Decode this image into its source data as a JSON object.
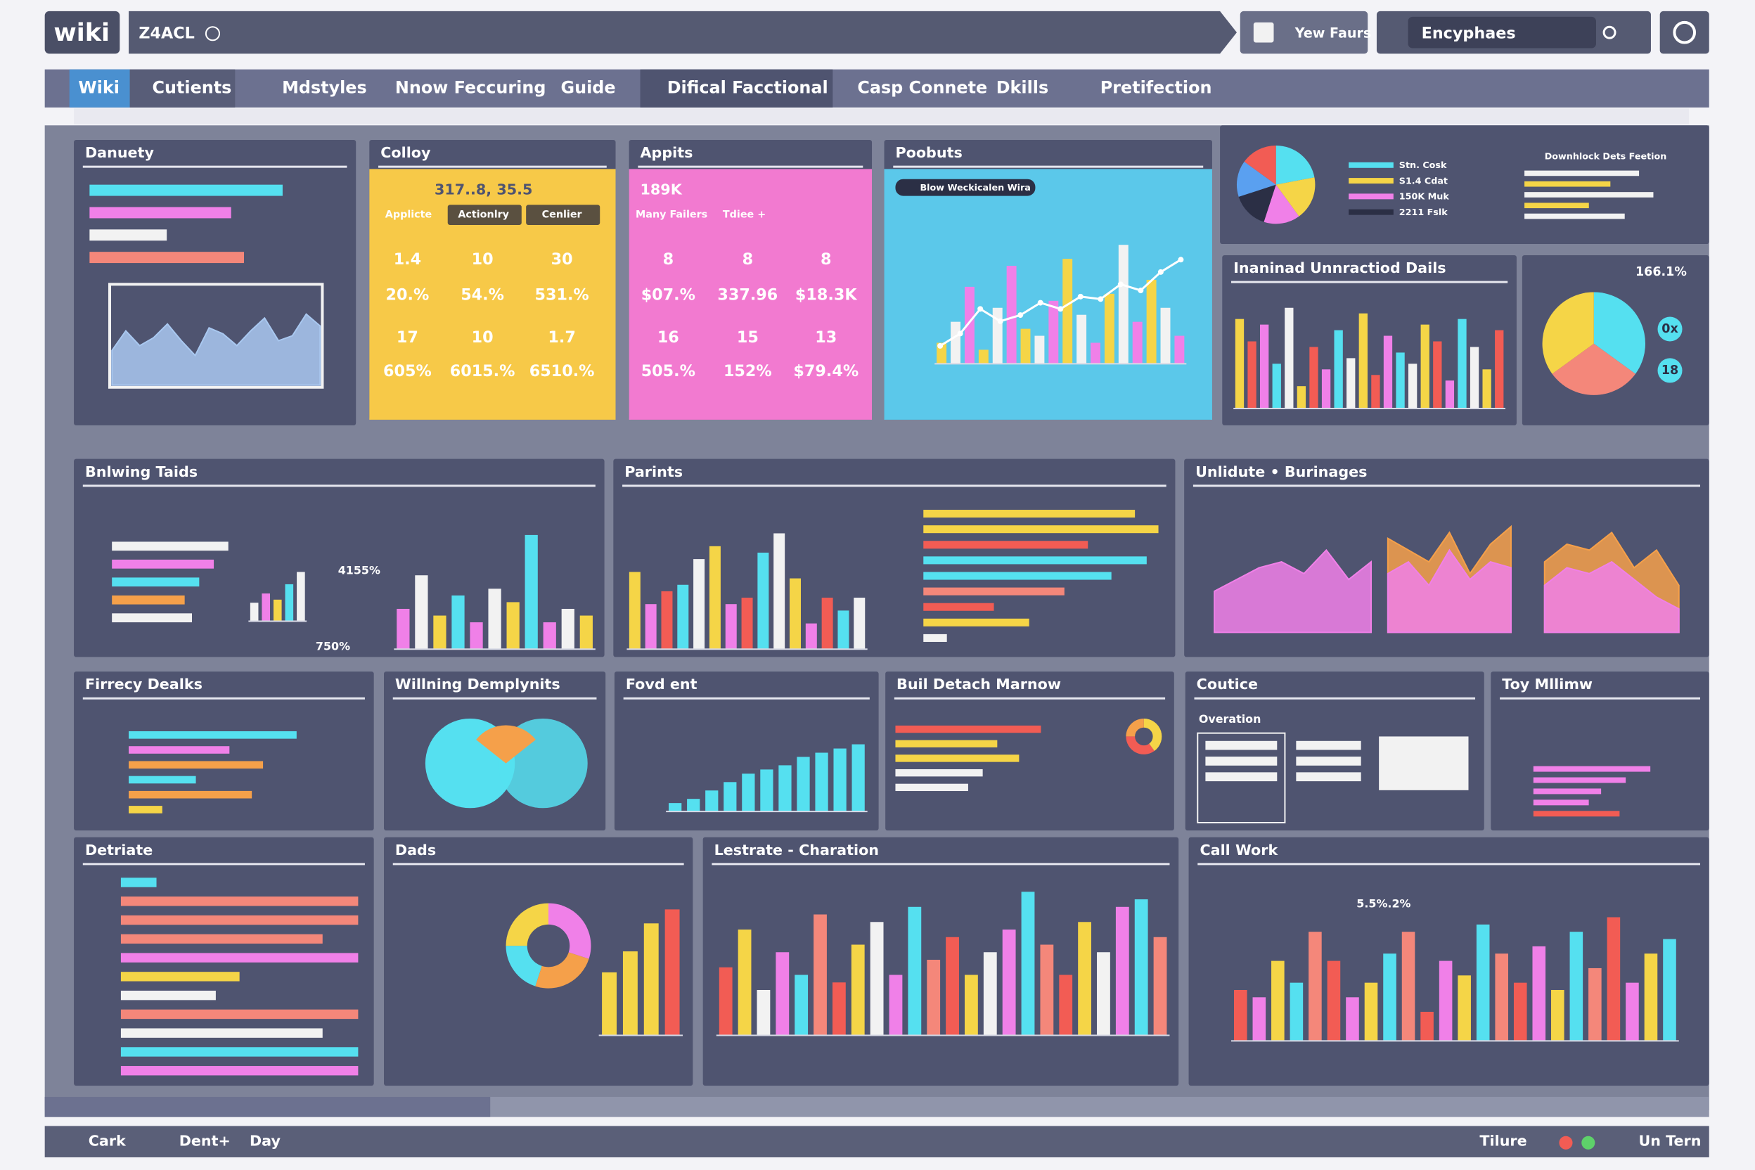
{
  "header": {
    "logo": "wiki",
    "breadcrumb": "Z4ACL",
    "button": "Yew Faurs",
    "search": "Encyphaes"
  },
  "nav": [
    "Wiki",
    "Cutients",
    "Mdstyles",
    "Nnow Feccuring",
    "Guide",
    "Difical Facctional",
    "Casp Connete",
    "Dkills",
    "Pretifection"
  ],
  "panels": [
    {
      "title": "Danuety",
      "charts": [
        {
          "type": "hbar",
          "values": [
            75,
            55,
            30,
            60
          ],
          "colors": [
            "#55e0f0",
            "#f080e8",
            "#f2f2f2",
            "#f4877a"
          ],
          "ylim": [
            0,
            100
          ]
        },
        {
          "type": "area",
          "ylim": [
            0,
            100
          ],
          "series": [
            {
              "color": "#a9c8f0",
              "values": [
                35,
                55,
                40,
                48,
                62,
                45,
                30,
                58,
                52,
                40,
                55,
                68,
                45,
                50,
                72,
                60
              ]
            }
          ]
        }
      ]
    },
    {
      "title": "Colloy",
      "table": {
        "header": "317..8, 35.5",
        "columns": [
          "Applicte",
          "Actionlry",
          "Cenlier"
        ],
        "rows": [
          [
            "1.4",
            "10",
            "30"
          ],
          [
            "20.%",
            "54.%",
            "531.%"
          ],
          [
            "17",
            "10",
            "1.7"
          ],
          [
            "605%",
            "6015.%",
            "6510.%"
          ]
        ]
      }
    },
    {
      "title": "Appits",
      "table": {
        "header": "189K",
        "columns": [
          "Many Failers",
          "Tdiee +"
        ],
        "rows": [
          [
            "8",
            "8",
            "8"
          ],
          [
            "$07.%",
            "337.96",
            "$18.3K"
          ],
          [
            "16",
            "15",
            "13"
          ],
          [
            "505.%",
            "152%",
            "$79.4%"
          ]
        ]
      }
    },
    {
      "title": "Poobuts",
      "legend": "Blow Weckicalen Wira",
      "charts": [
        {
          "type": "bar",
          "values": [
            15,
            30,
            55,
            10,
            40,
            70,
            25,
            20,
            45,
            75,
            35,
            15,
            50,
            85,
            30,
            60,
            40,
            20
          ],
          "colors": [
            "#f5d547",
            "#f2f2f2",
            "#f080e8"
          ],
          "ylim": [
            0,
            100
          ]
        },
        {
          "type": "line",
          "values": [
            10,
            20,
            40,
            30,
            35,
            45,
            40,
            50,
            48,
            60,
            55,
            70,
            80
          ],
          "colors": [
            "#ffffff"
          ],
          "ylim": [
            0,
            100
          ]
        }
      ]
    },
    {
      "subtitle": "Downhlock Dets Feetion",
      "legend": [
        "Stn. Cosk",
        "S1.4 Cdat",
        "150K Muk",
        "2211 Fslk"
      ],
      "charts": [
        {
          "type": "pie",
          "values": [
            22,
            18,
            15,
            15,
            15,
            15
          ],
          "colors": [
            "#55e0f0",
            "#f5d547",
            "#f080e8",
            "#2b2f45",
            "#5aa0f0",
            "#f25c54"
          ]
        },
        {
          "type": "hbar",
          "values": [
            80,
            60,
            90,
            45,
            70
          ],
          "colors": [
            "#f2f2f2",
            "#f5d547",
            "#f2f2f2",
            "#f5d547",
            "#f2f2f2"
          ],
          "ylim": [
            0,
            100
          ]
        }
      ]
    },
    {
      "title": "Inaninad Unnractiod Dails",
      "charts": [
        {
          "type": "bar",
          "values": [
            80,
            60,
            75,
            40,
            90,
            20,
            55,
            35,
            70,
            45,
            85,
            30,
            65,
            50,
            40,
            75,
            60,
            25,
            80,
            55,
            35,
            70
          ],
          "colors": [
            "#f5d547",
            "#f25c54",
            "#f080e8",
            "#55e0f0",
            "#f2f2f2"
          ],
          "ylim": [
            0,
            100
          ]
        }
      ]
    },
    {
      "value_label": "166.1%",
      "badges": [
        "0x",
        "18"
      ],
      "charts": [
        {
          "type": "pie",
          "values": [
            35,
            30,
            35
          ],
          "colors": [
            "#55e0f0",
            "#f4877a",
            "#f5d547"
          ]
        }
      ]
    },
    {
      "title": "Bnlwing Taids",
      "labels": [
        "4155%",
        "750%"
      ],
      "charts": [
        {
          "type": "hbar",
          "values": [
            80,
            70,
            60,
            50,
            55
          ],
          "colors": [
            "#f2f2f2",
            "#f080e8",
            "#55e0f0",
            "#f5a04a",
            "#f2f2f2"
          ],
          "ylim": [
            0,
            100
          ]
        },
        {
          "type": "bar",
          "values": [
            30,
            45,
            35,
            60,
            80
          ],
          "colors": [
            "#f2f2f2",
            "#f080e8",
            "#f5d547",
            "#55e0f0"
          ],
          "ylim": [
            0,
            100
          ]
        },
        {
          "type": "bar",
          "values": [
            30,
            55,
            25,
            40,
            20,
            45,
            35,
            85,
            20,
            30,
            25
          ],
          "colors": [
            "#f080e8",
            "#f2f2f2",
            "#f5d547",
            "#55e0f0"
          ],
          "ylim": [
            0,
            100
          ]
        }
      ]
    },
    {
      "title": "Parints",
      "charts": [
        {
          "type": "bar",
          "values": [
            60,
            35,
            45,
            50,
            70,
            80,
            35,
            40,
            75,
            90,
            55,
            20,
            40,
            30,
            40
          ],
          "colors": [
            "#f5d547",
            "#f080e8",
            "#f25c54",
            "#55e0f0",
            "#f2f2f2"
          ],
          "ylim": [
            0,
            100
          ]
        },
        {
          "type": "hbar",
          "values": [
            90,
            100,
            70,
            95,
            80,
            60,
            30,
            45,
            10
          ],
          "colors": [
            "#f5d547",
            "#f5d547",
            "#f25c54",
            "#55e0f0",
            "#55e0f0",
            "#f4877a",
            "#f25c54",
            "#f5d547",
            "#f2f2f2"
          ],
          "ylim": [
            0,
            100
          ]
        }
      ]
    },
    {
      "title": "Unlidute • Burinages",
      "charts": [
        {
          "type": "area",
          "ylim": [
            0,
            100
          ],
          "series": [
            {
              "color": "#f080e8",
              "values": [
                35,
                45,
                55,
                60,
                50,
                70,
                45,
                60
              ]
            }
          ]
        },
        {
          "type": "area",
          "ylim": [
            0,
            100
          ],
          "series": [
            {
              "color": "#f5a04a",
              "values": [
                80,
                70,
                60,
                85,
                50,
                75,
                90
              ]
            },
            {
              "color": "#f080e8",
              "values": [
                50,
                60,
                40,
                70,
                45,
                60,
                55
              ]
            }
          ]
        },
        {
          "type": "area",
          "ylim": [
            0,
            100
          ],
          "series": [
            {
              "color": "#f5a04a",
              "values": [
                60,
                75,
                70,
                85,
                55,
                70,
                40
              ]
            },
            {
              "color": "#f080e8",
              "values": [
                40,
                55,
                50,
                60,
                45,
                30,
                20
              ]
            }
          ]
        }
      ]
    },
    {
      "title": "Firrecy Dealks",
      "charts": [
        {
          "type": "hbar",
          "values": [
            75,
            45,
            60,
            30,
            55,
            15
          ],
          "colors": [
            "#55e0f0",
            "#f080e8",
            "#f5a04a",
            "#55e0f0",
            "#f5a04a",
            "#f5d547"
          ],
          "ylim": [
            0,
            100
          ]
        }
      ]
    },
    {
      "title": "Willning Demplynits"
    },
    {
      "title": "Fovd ent",
      "charts": [
        {
          "type": "bar",
          "values": [
            10,
            15,
            25,
            35,
            45,
            50,
            55,
            65,
            70,
            75,
            80
          ],
          "colors": [
            "#55e0f0"
          ],
          "ylim": [
            0,
            100
          ]
        }
      ]
    },
    {
      "title": "Buil Detach Marnow",
      "charts": [
        {
          "type": "hbar",
          "values": [
            100,
            70,
            85,
            60,
            50
          ],
          "colors": [
            "#f25c54",
            "#f5d547",
            "#f5d547",
            "#f2f2f2",
            "#f2f2f2"
          ],
          "ylim": [
            0,
            100
          ]
        },
        {
          "type": "donut",
          "values": [
            40,
            35,
            25
          ],
          "colors": [
            "#f5d547",
            "#f25c54",
            "#f5a04a"
          ]
        }
      ]
    },
    {
      "title": "Coutice",
      "subtitle": "Overation"
    },
    {
      "title": "Toy Mllimw",
      "charts": [
        {
          "type": "hbar",
          "values": [
            95,
            75,
            55,
            45,
            70
          ],
          "colors": [
            "#f080e8",
            "#f080e8",
            "#f080e8",
            "#f080e8",
            "#f25c54"
          ],
          "ylim": [
            0,
            100
          ]
        }
      ]
    },
    {
      "title": "Detriate",
      "charts": [
        {
          "type": "hbar",
          "values": [
            15,
            100,
            100,
            85,
            100,
            50,
            40,
            100,
            85,
            100,
            100
          ],
          "colors": [
            "#55e0f0",
            "#f4877a",
            "#f4877a",
            "#f4877a",
            "#f080e8",
            "#f5d547",
            "#f2f2f2",
            "#f4877a",
            "#f2f2f2",
            "#55e0f0",
            "#f080e8"
          ],
          "ylim": [
            0,
            100
          ]
        }
      ]
    },
    {
      "title": "Dads",
      "charts": [
        {
          "type": "donut",
          "values": [
            30,
            25,
            20,
            25
          ],
          "colors": [
            "#f080e8",
            "#f5a04a",
            "#55e0f0",
            "#f5d547"
          ]
        },
        {
          "type": "bar",
          "values": [
            45,
            60,
            80,
            90
          ],
          "colors": [
            "#f5d547",
            "#f5d547",
            "#f5d547",
            "#f25c54"
          ],
          "ylim": [
            0,
            100
          ]
        }
      ]
    },
    {
      "title": "Lestrate - Charation",
      "charts": [
        {
          "type": "bar",
          "values": [
            45,
            70,
            30,
            55,
            40,
            80,
            35,
            60,
            75,
            40,
            85,
            50,
            65,
            40,
            55,
            70,
            95,
            60,
            40,
            75,
            55,
            85,
            90,
            65
          ],
          "colors": [
            "#f25c54",
            "#f5d547",
            "#f2f2f2",
            "#f080e8",
            "#55e0f0",
            "#f4877a"
          ],
          "ylim": [
            0,
            100
          ]
        }
      ]
    },
    {
      "title": "Call Work",
      "labels": [
        "5.5%.2%"
      ],
      "charts": [
        {
          "type": "bar",
          "values": [
            35,
            30,
            55,
            40,
            75,
            55,
            30,
            40,
            60,
            75,
            20,
            55,
            45,
            80,
            60,
            40,
            65,
            35,
            75,
            50,
            85,
            40,
            60,
            70
          ],
          "colors": [
            "#f25c54",
            "#f080e8",
            "#f5d547",
            "#55e0f0",
            "#f4877a"
          ],
          "ylim": [
            0,
            100
          ]
        }
      ]
    }
  ],
  "footer": {
    "left": [
      "Cark",
      "Dent+",
      "Day"
    ],
    "right": [
      "Tilure",
      "Un Tern"
    ]
  }
}
